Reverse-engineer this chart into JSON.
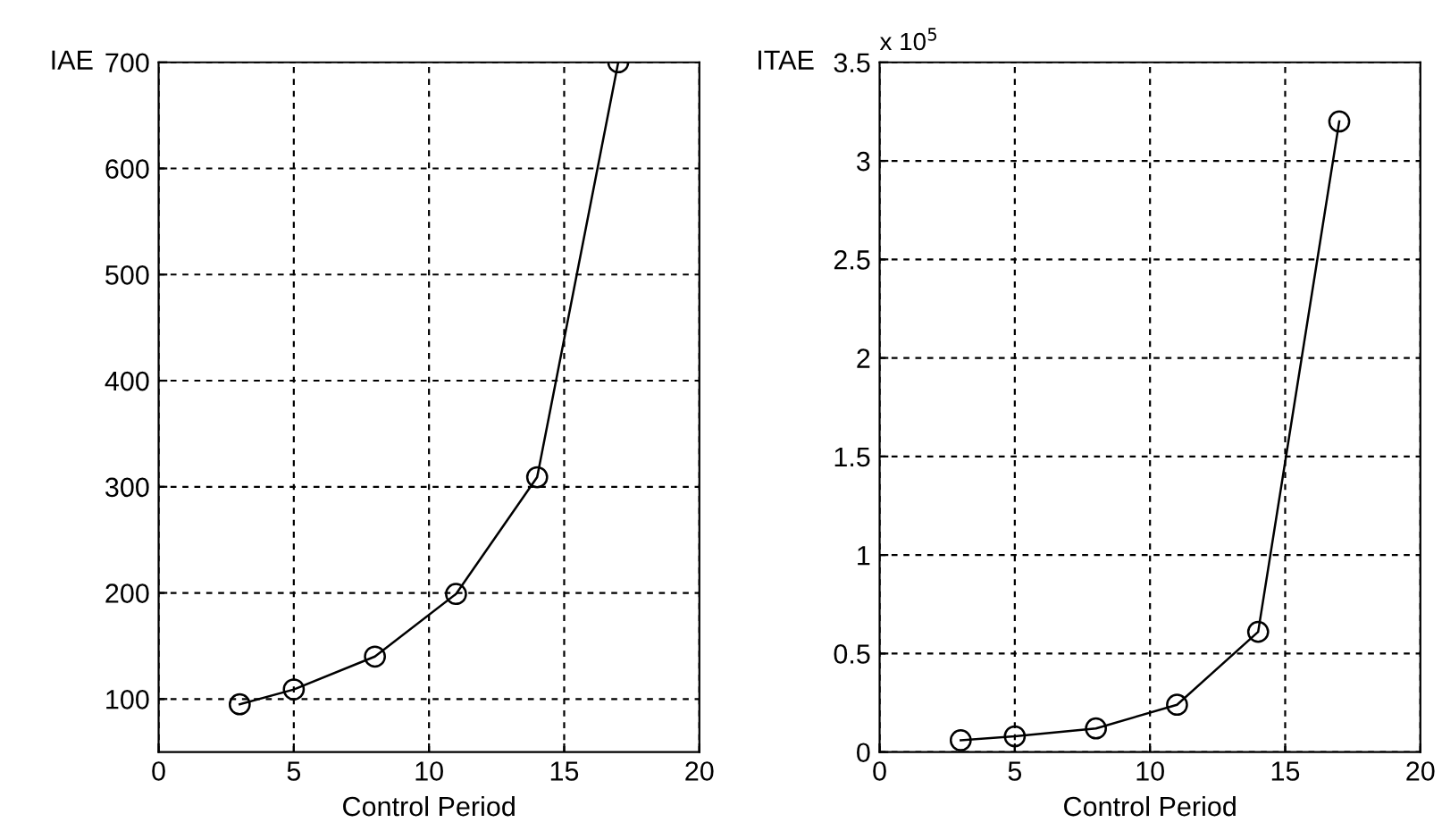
{
  "chart_data": [
    {
      "type": "line",
      "ylabel": "IAE",
      "xlabel": "Control Period",
      "x": [
        3,
        5,
        8,
        11,
        14,
        17
      ],
      "series": [
        {
          "color": "#000000",
          "values": [
            95,
            109,
            140,
            199,
            309,
            700
          ]
        }
      ],
      "xlim": [
        0,
        20
      ],
      "xticks": [
        0,
        5,
        10,
        15,
        20
      ],
      "ylim": [
        50,
        700
      ],
      "yticks": [
        100,
        200,
        300,
        400,
        500,
        600,
        700
      ],
      "grid": true,
      "marker": "circle",
      "line_style": "solid"
    },
    {
      "type": "line",
      "ylabel": "ITAE",
      "xlabel": "Control Period",
      "x": [
        3,
        5,
        8,
        11,
        14,
        17
      ],
      "series": [
        {
          "color": "#000000",
          "values": [
            0.06,
            0.08,
            0.12,
            0.24,
            0.61,
            3.2
          ]
        }
      ],
      "xlim": [
        0,
        20
      ],
      "xticks": [
        0,
        5,
        10,
        15,
        20
      ],
      "ylim": [
        0,
        3.5
      ],
      "yticks": [
        0,
        0.5,
        1,
        1.5,
        2,
        2.5,
        3,
        3.5
      ],
      "annotations": [
        "x 10$^{5}$"
      ],
      "grid": true,
      "marker": "circle",
      "line_style": "solid"
    }
  ]
}
